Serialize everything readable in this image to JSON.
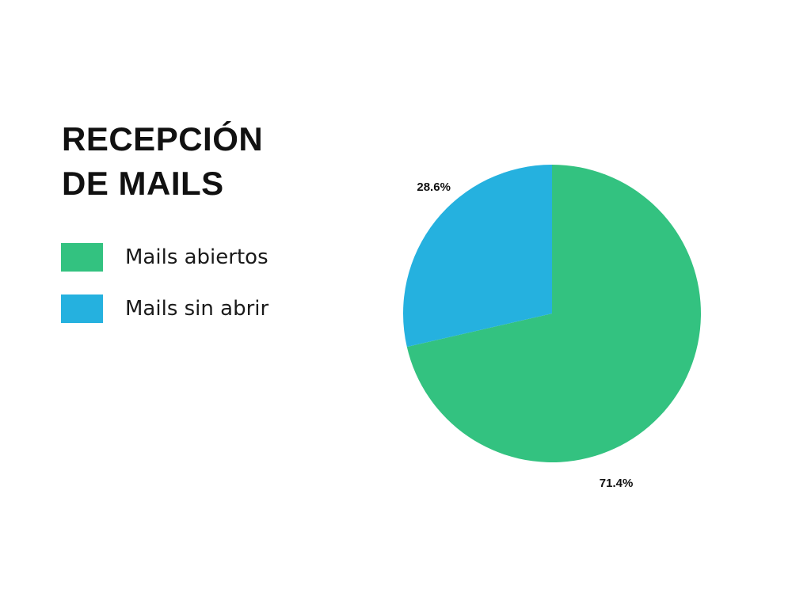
{
  "chart_data": {
    "type": "pie",
    "title_lines": [
      "RECEPCIÓN",
      "DE MAILS"
    ],
    "categories": [
      "Mails abiertos",
      "Mails sin abrir"
    ],
    "values": [
      71.4,
      28.6
    ],
    "labels": [
      "71.4%",
      "28.6%"
    ],
    "colors": [
      "#33c280",
      "#25b1df"
    ],
    "legend_placement": "left"
  }
}
